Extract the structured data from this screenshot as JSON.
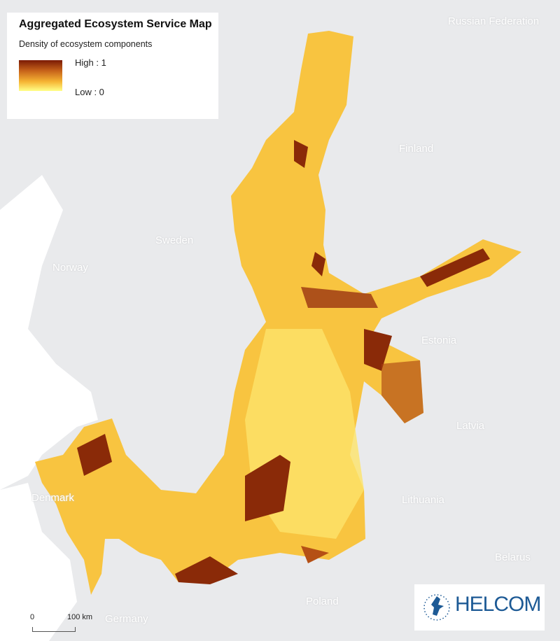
{
  "legend": {
    "title": "Aggregated Ecosystem Service Map",
    "subtitle": "Density of ecosystem components",
    "high_label": "High : 1",
    "low_label": "Low : 0",
    "ramp_colors": [
      "#7a1a05",
      "#c8641a",
      "#f6b534",
      "#ffff88"
    ]
  },
  "countries": [
    "Russian Federation",
    "Finland",
    "Sweden",
    "Norway",
    "Estonia",
    "Latvia",
    "Lithuania",
    "Denmark",
    "Belarus",
    "Poland",
    "Germany"
  ],
  "scale_bar": {
    "start": "0",
    "end": "100 km"
  },
  "logo": {
    "text": "HELCOM",
    "color": "#1d5a95"
  },
  "colors": {
    "land": "#e9eaec",
    "outer_sea": "#ffffff",
    "sea_base": "#f8c33e",
    "high": "#7a1a05"
  }
}
